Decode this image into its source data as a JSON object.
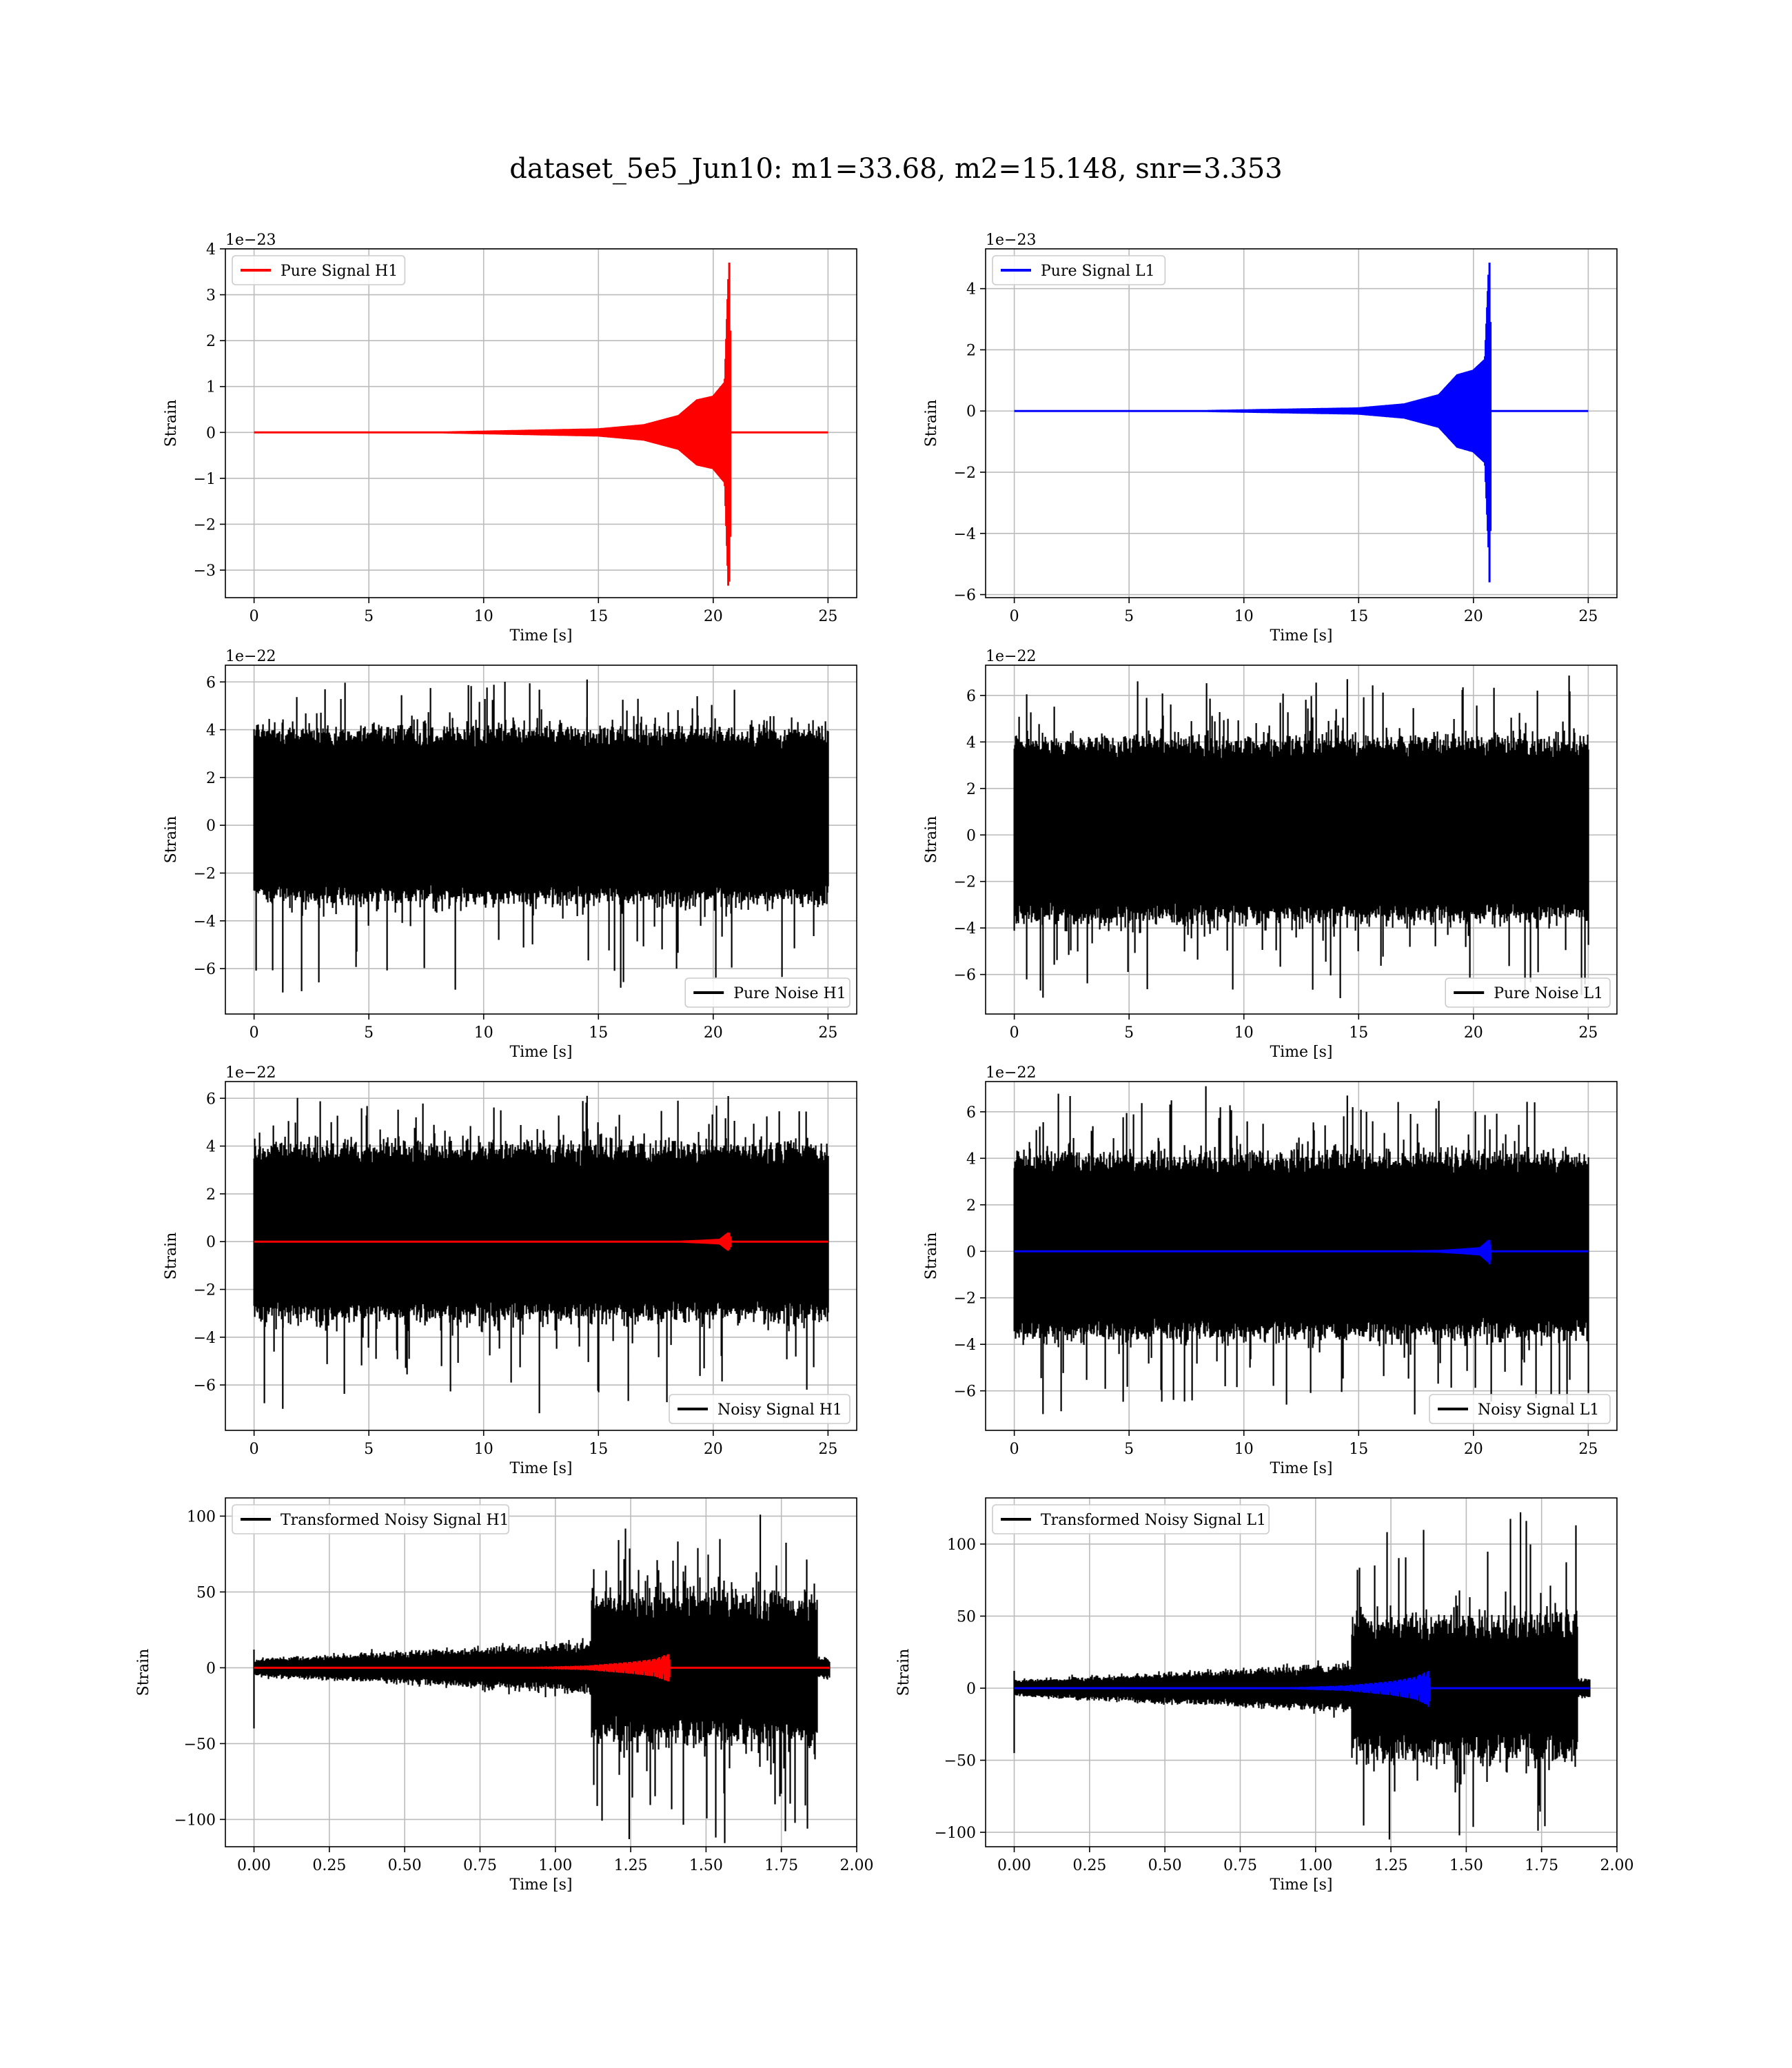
{
  "title": "dataset_5e5_Jun10: m1=33.68, m2=15.148, snr=3.353",
  "colors": {
    "h1_signal": "#ff0000",
    "l1_signal": "#0000ff",
    "noise": "#000000",
    "grid": "#b0b0b0"
  },
  "chart_data": [
    {
      "type": "line",
      "id": "pure-signal-h1",
      "xlabel": "Time [s]",
      "ylabel": "Strain",
      "offset_text": "1e−23",
      "xlim": [
        -1.25,
        26.25
      ],
      "ylim": [
        -3.6,
        4.0
      ],
      "xticks": [
        0,
        5,
        10,
        15,
        20,
        25
      ],
      "xtick_labels": [
        "0",
        "5",
        "10",
        "15",
        "20",
        "25"
      ],
      "yticks": [
        -3,
        -2,
        -1,
        0,
        1,
        2,
        3,
        4
      ],
      "ytick_labels": [
        "−3",
        "−2",
        "−1",
        "0",
        "1",
        "2",
        "3",
        "4"
      ],
      "grid": true,
      "legend_position": "upper-left",
      "series": [
        {
          "name": "Pure Signal H1",
          "kind": "chirp",
          "color": "#ff0000",
          "x_start": 0,
          "x_end": 25,
          "merger_x": 20.7,
          "envelope": [
            [
              0,
              0.0
            ],
            [
              8,
              0.02
            ],
            [
              15,
              0.09
            ],
            [
              17,
              0.18
            ],
            [
              18.5,
              0.38
            ],
            [
              19.3,
              0.72
            ],
            [
              20.0,
              0.8
            ],
            [
              20.5,
              1.1
            ],
            [
              20.68,
              3.7
            ]
          ],
          "merger_peak": 3.7,
          "merger_trough": -3.25
        }
      ]
    },
    {
      "type": "line",
      "id": "pure-signal-l1",
      "xlabel": "Time [s]",
      "ylabel": "Strain",
      "offset_text": "1e−23",
      "xlim": [
        -1.25,
        26.25
      ],
      "ylim": [
        -6.1,
        5.3
      ],
      "xticks": [
        0,
        5,
        10,
        15,
        20,
        25
      ],
      "xtick_labels": [
        "0",
        "5",
        "10",
        "15",
        "20",
        "25"
      ],
      "yticks": [
        -6,
        -4,
        -2,
        0,
        2,
        4
      ],
      "ytick_labels": [
        "−6",
        "−4",
        "−2",
        "0",
        "2",
        "4"
      ],
      "grid": true,
      "legend_position": "upper-left",
      "series": [
        {
          "name": "Pure Signal L1",
          "kind": "chirp",
          "color": "#0000ff",
          "x_start": 0,
          "x_end": 25,
          "merger_x": 20.7,
          "envelope": [
            [
              0,
              0.0
            ],
            [
              8,
              0.03
            ],
            [
              15,
              0.12
            ],
            [
              17,
              0.25
            ],
            [
              18.5,
              0.55
            ],
            [
              19.3,
              1.2
            ],
            [
              20.0,
              1.35
            ],
            [
              20.5,
              1.7
            ],
            [
              20.68,
              4.9
            ]
          ],
          "merger_peak": 4.85,
          "merger_trough": -5.6
        }
      ]
    },
    {
      "type": "line",
      "id": "pure-noise-h1",
      "xlabel": "Time [s]",
      "ylabel": "Strain",
      "offset_text": "1e−22",
      "xlim": [
        -1.25,
        26.25
      ],
      "ylim": [
        -7.9,
        6.7
      ],
      "xticks": [
        0,
        5,
        10,
        15,
        20,
        25
      ],
      "xtick_labels": [
        "0",
        "5",
        "10",
        "15",
        "20",
        "25"
      ],
      "yticks": [
        -6,
        -4,
        -2,
        0,
        2,
        4,
        6
      ],
      "ytick_labels": [
        "−6",
        "−4",
        "−2",
        "0",
        "2",
        "4",
        "6"
      ],
      "grid": true,
      "legend_position": "lower-right",
      "series": [
        {
          "name": "Pure Noise H1",
          "kind": "noise",
          "color": "#000000",
          "x_start": 0,
          "x_end": 25,
          "band_upper": 3.8,
          "band_lower": -2.9,
          "max": 6.1,
          "min": -7.0
        }
      ]
    },
    {
      "type": "line",
      "id": "pure-noise-l1",
      "xlabel": "Time [s]",
      "ylabel": "Strain",
      "offset_text": "1e−22",
      "xlim": [
        -1.25,
        26.25
      ],
      "ylim": [
        -7.7,
        7.3
      ],
      "xticks": [
        0,
        5,
        10,
        15,
        20,
        25
      ],
      "xtick_labels": [
        "0",
        "5",
        "10",
        "15",
        "20",
        "25"
      ],
      "yticks": [
        -6,
        -4,
        -2,
        0,
        2,
        4,
        6
      ],
      "ytick_labels": [
        "−6",
        "−4",
        "−2",
        "0",
        "2",
        "4",
        "6"
      ],
      "grid": true,
      "legend_position": "lower-right",
      "series": [
        {
          "name": "Pure Noise L1",
          "kind": "noise",
          "color": "#000000",
          "x_start": 0,
          "x_end": 25,
          "band_upper": 3.9,
          "band_lower": -3.4,
          "max": 6.7,
          "min": -7.0
        }
      ]
    },
    {
      "type": "line",
      "id": "noisy-signal-h1",
      "xlabel": "Time [s]",
      "ylabel": "Strain",
      "offset_text": "1e−22",
      "xlim": [
        -1.25,
        26.25
      ],
      "ylim": [
        -7.9,
        6.7
      ],
      "xticks": [
        0,
        5,
        10,
        15,
        20,
        25
      ],
      "xtick_labels": [
        "0",
        "5",
        "10",
        "15",
        "20",
        "25"
      ],
      "yticks": [
        -6,
        -4,
        -2,
        0,
        2,
        4,
        6
      ],
      "ytick_labels": [
        "−6",
        "−4",
        "−2",
        "0",
        "2",
        "4",
        "6"
      ],
      "grid": true,
      "legend_position": "lower-right",
      "series": [
        {
          "name": "Noisy Signal H1",
          "kind": "noise",
          "color": "#000000",
          "x_start": 0,
          "x_end": 25,
          "band_upper": 3.8,
          "band_lower": -2.9,
          "max": 6.1,
          "min": -7.0
        },
        {
          "name": "",
          "kind": "chirp",
          "color": "#ff0000",
          "x_start": 0,
          "x_end": 25,
          "merger_x": 20.7,
          "envelope": [
            [
              0,
              0.0
            ],
            [
              15,
              0.01
            ],
            [
              18.5,
              0.04
            ],
            [
              19.5,
              0.08
            ],
            [
              20.3,
              0.12
            ],
            [
              20.68,
              0.4
            ]
          ],
          "merger_peak": 0.37,
          "merger_trough": -0.33
        }
      ]
    },
    {
      "type": "line",
      "id": "noisy-signal-l1",
      "xlabel": "Time [s]",
      "ylabel": "Strain",
      "offset_text": "1e−22",
      "xlim": [
        -1.25,
        26.25
      ],
      "ylim": [
        -7.7,
        7.3
      ],
      "xticks": [
        0,
        5,
        10,
        15,
        20,
        25
      ],
      "xtick_labels": [
        "0",
        "5",
        "10",
        "15",
        "20",
        "25"
      ],
      "yticks": [
        -6,
        -4,
        -2,
        0,
        2,
        4,
        6
      ],
      "ytick_labels": [
        "−6",
        "−4",
        "−2",
        "0",
        "2",
        "4",
        "6"
      ],
      "grid": true,
      "legend_position": "lower-right",
      "series": [
        {
          "name": "Noisy Signal L1",
          "kind": "noise",
          "color": "#000000",
          "x_start": 0,
          "x_end": 25,
          "band_upper": 3.9,
          "band_lower": -3.4,
          "max": 6.7,
          "min": -7.0
        },
        {
          "name": "",
          "kind": "chirp",
          "color": "#0000ff",
          "x_start": 0,
          "x_end": 25,
          "merger_x": 20.7,
          "envelope": [
            [
              0,
              0.0
            ],
            [
              15,
              0.02
            ],
            [
              18.5,
              0.06
            ],
            [
              19.5,
              0.12
            ],
            [
              20.3,
              0.18
            ],
            [
              20.68,
              0.5
            ]
          ],
          "merger_peak": 0.49,
          "merger_trough": -0.56
        }
      ]
    },
    {
      "type": "line",
      "id": "transformed-noisy-signal-h1",
      "xlabel": "Time [s]",
      "ylabel": "Strain",
      "offset_text": "",
      "xlim": [
        -0.095,
        2.0
      ],
      "ylim": [
        -118,
        112
      ],
      "xticks": [
        0,
        0.25,
        0.5,
        0.75,
        1.0,
        1.25,
        1.5,
        1.75,
        2.0
      ],
      "xtick_labels": [
        "0.00",
        "0.25",
        "0.50",
        "0.75",
        "1.00",
        "1.25",
        "1.50",
        "1.75",
        "2.00"
      ],
      "yticks": [
        -100,
        -50,
        0,
        50,
        100
      ],
      "ytick_labels": [
        "−100",
        "−50",
        "0",
        "50",
        "100"
      ],
      "grid": true,
      "legend_position": "upper-left",
      "series": [
        {
          "name": "Transformed Noisy Signal H1",
          "kind": "transformed_noise",
          "color": "#000000",
          "x_start": 0,
          "x_end": 1.91,
          "transition_x": 1.12,
          "end_burst_x": 1.87,
          "early_amp_start": 5,
          "early_amp_end": 15,
          "late_amp": 45,
          "max": 101,
          "min": -113,
          "initial_spike": -40
        },
        {
          "name": "",
          "kind": "chirp",
          "color": "#ff0000",
          "x_start": 0,
          "x_end": 1.91,
          "merger_x": 1.375,
          "envelope": [
            [
              0,
              0.0
            ],
            [
              0.9,
              0.4
            ],
            [
              1.1,
              1.5
            ],
            [
              1.25,
              4
            ],
            [
              1.33,
              6
            ],
            [
              1.37,
              9
            ]
          ],
          "merger_peak": 9,
          "merger_trough": -9
        }
      ]
    },
    {
      "type": "line",
      "id": "transformed-noisy-signal-l1",
      "xlabel": "Time [s]",
      "ylabel": "Strain",
      "offset_text": "",
      "xlim": [
        -0.095,
        2.0
      ],
      "ylim": [
        -110,
        132
      ],
      "xticks": [
        0,
        0.25,
        0.5,
        0.75,
        1.0,
        1.25,
        1.5,
        1.75,
        2.0
      ],
      "xtick_labels": [
        "0.00",
        "0.25",
        "0.50",
        "0.75",
        "1.00",
        "1.25",
        "1.50",
        "1.75",
        "2.00"
      ],
      "yticks": [
        -100,
        -50,
        0,
        50,
        100
      ],
      "ytick_labels": [
        "−100",
        "−50",
        "0",
        "50",
        "100"
      ],
      "grid": true,
      "legend_position": "upper-left",
      "series": [
        {
          "name": "Transformed Noisy Signal L1",
          "kind": "transformed_noise",
          "color": "#000000",
          "x_start": 0,
          "x_end": 1.91,
          "transition_x": 1.12,
          "end_burst_x": 1.87,
          "early_amp_start": 5,
          "early_amp_end": 15,
          "late_amp": 45,
          "max": 122,
          "min": -105,
          "initial_spike": -45
        },
        {
          "name": "",
          "kind": "chirp",
          "color": "#0000ff",
          "x_start": 0,
          "x_end": 1.91,
          "merger_x": 1.375,
          "envelope": [
            [
              0,
              0.0
            ],
            [
              0.9,
              0.5
            ],
            [
              1.1,
              2
            ],
            [
              1.25,
              5
            ],
            [
              1.33,
              8
            ],
            [
              1.37,
              12
            ]
          ],
          "merger_peak": 12,
          "merger_trough": -13
        }
      ]
    }
  ]
}
